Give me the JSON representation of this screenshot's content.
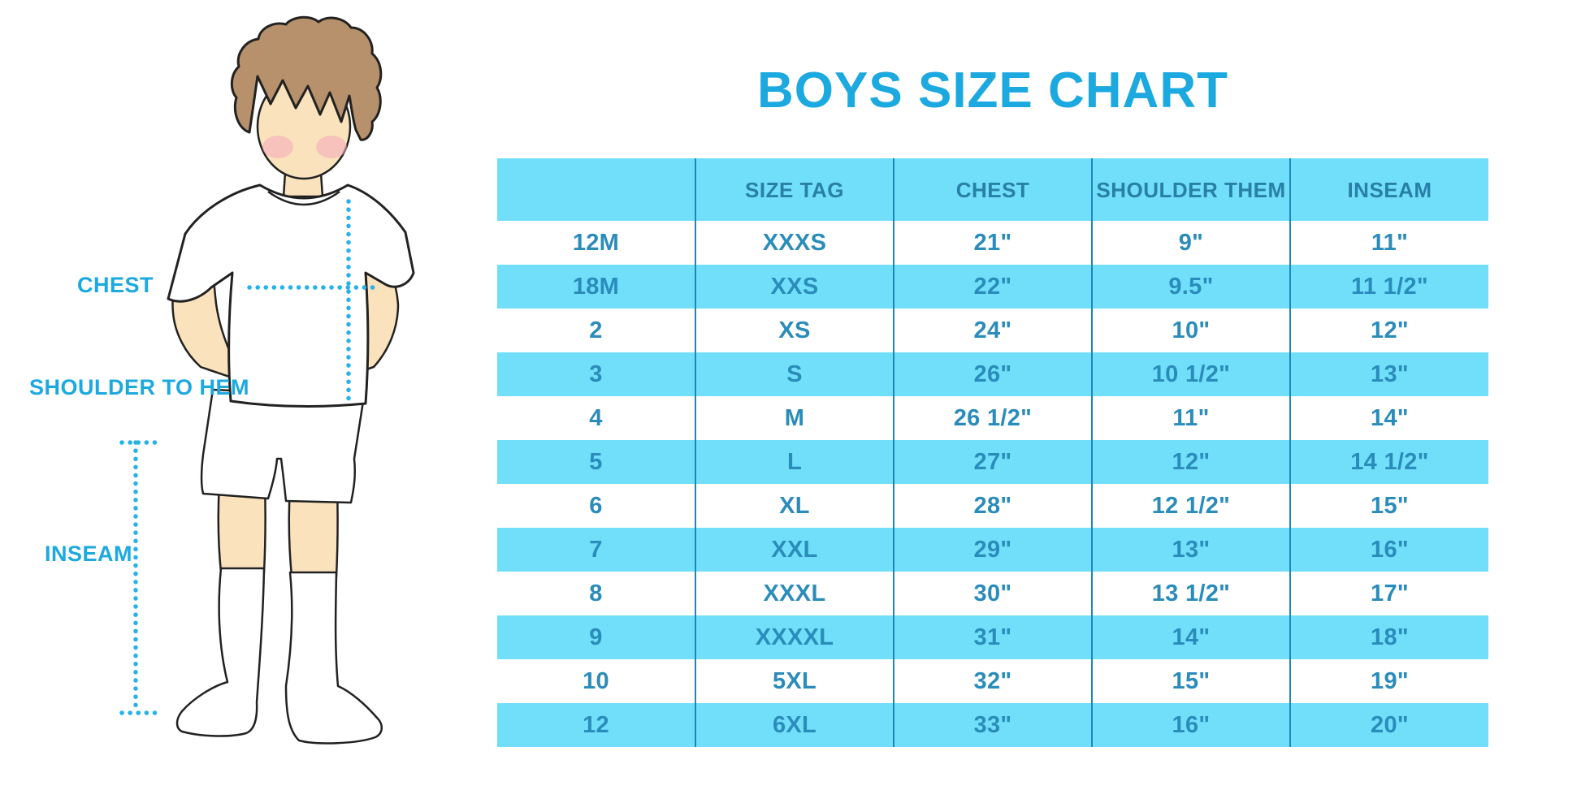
{
  "title": "BOYS SIZE CHART",
  "figure": {
    "description": "boy-with-measurement-lines",
    "chest_label": "CHEST",
    "shoulder_label": "SHOULDER TO HEM",
    "inseam_label": "INSEAM"
  },
  "chart_data": {
    "type": "table",
    "title": "BOYS SIZE CHART",
    "columns": [
      "",
      "SIZE TAG",
      "CHEST",
      "SHOULDER THEM",
      "INSEAM"
    ],
    "rows": [
      [
        "12M",
        "XXXS",
        "21\"",
        "9\"",
        "11\""
      ],
      [
        "18M",
        "XXS",
        "22\"",
        "9.5\"",
        "11 1/2\""
      ],
      [
        "2",
        "XS",
        "24\"",
        "10\"",
        "12\""
      ],
      [
        "3",
        "S",
        "26\"",
        "10 1/2\"",
        "13\""
      ],
      [
        "4",
        "M",
        "26 1/2\"",
        "11\"",
        "14\""
      ],
      [
        "5",
        "L",
        "27\"",
        "12\"",
        "14 1/2\""
      ],
      [
        "6",
        "XL",
        "28\"",
        "12 1/2\"",
        "15\""
      ],
      [
        "7",
        "XXL",
        "29\"",
        "13\"",
        "16\""
      ],
      [
        "8",
        "XXXL",
        "30\"",
        "13 1/2\"",
        "17\""
      ],
      [
        "9",
        "XXXXL",
        "31\"",
        "14\"",
        "18\""
      ],
      [
        "10",
        "5XL",
        "32\"",
        "15\"",
        "19\""
      ],
      [
        "12",
        "6XL",
        "33\"",
        "16\"",
        "20\""
      ]
    ],
    "layout": {
      "stripes": "alternating white and cyan rows, cyan header",
      "legend": "none",
      "grid": "vertical column dividers only"
    }
  },
  "colors": {
    "accent_blue": "#1CA9E0",
    "stripe_cyan": "#71DFFA",
    "header_text": "#287FA7",
    "cell_text": "#2A8CBA",
    "column_divider": "#1E87B5",
    "measure_dots": "#29B2E8",
    "skin": "#FAE3BC",
    "hair_brown": "#B7906C",
    "blush_pink": "#F2A8BA",
    "line_outline": "#222222",
    "garment_white": "#FFFFFF"
  }
}
